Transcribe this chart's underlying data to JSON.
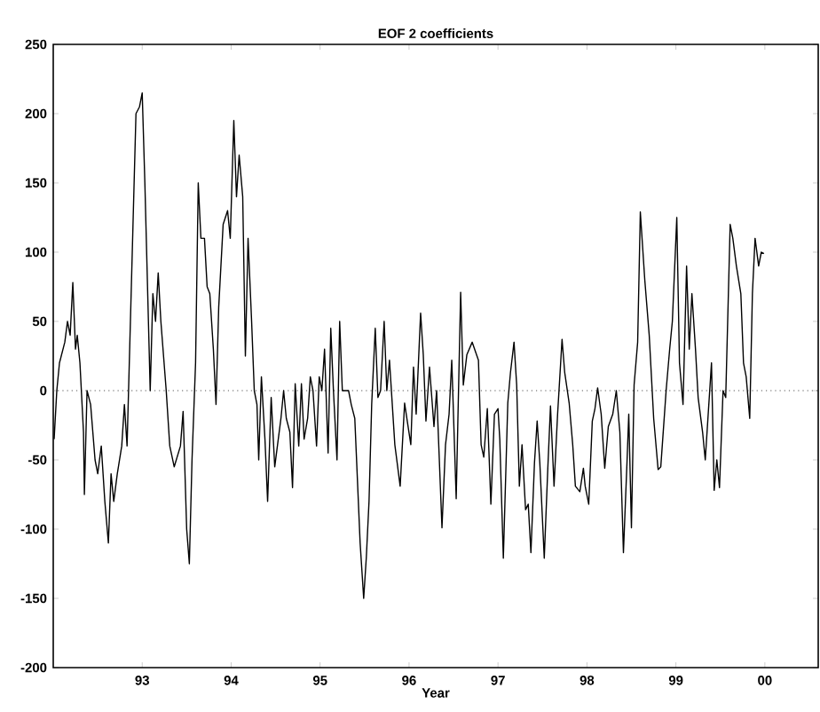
{
  "chart_data": {
    "type": "line",
    "title": "EOF 2 coefficients",
    "xlabel": "Year",
    "xlim": [
      1992,
      2000.6
    ],
    "ylim": [
      -200,
      250
    ],
    "xticks": [
      {
        "value": 1993,
        "label": "93"
      },
      {
        "value": 1994,
        "label": "94"
      },
      {
        "value": 1995,
        "label": "95"
      },
      {
        "value": 1996,
        "label": "96"
      },
      {
        "value": 1997,
        "label": "97"
      },
      {
        "value": 1998,
        "label": "98"
      },
      {
        "value": 1999,
        "label": "99"
      },
      {
        "value": 2000,
        "label": "00"
      }
    ],
    "yticks": [
      -200,
      -150,
      -100,
      -50,
      0,
      50,
      100,
      150,
      200,
      250
    ],
    "grid": false,
    "marker": "none",
    "line_style": "solid",
    "ref_lines": [
      {
        "axis": "y",
        "value": 0,
        "line_style": "dotted",
        "color": "#555555"
      }
    ],
    "series": [
      {
        "color": "#000000",
        "x": [
          1992.01,
          1992.04,
          1992.07,
          1992.13,
          1992.16,
          1992.19,
          1992.22,
          1992.25,
          1992.27,
          1992.3,
          1992.34,
          1992.35,
          1992.38,
          1992.42,
          1992.47,
          1992.5,
          1992.54,
          1992.58,
          1992.62,
          1992.65,
          1992.68,
          1992.72,
          1992.77,
          1992.8,
          1992.83,
          1992.88,
          1992.93,
          1992.97,
          1993.0,
          1993.03,
          1993.07,
          1993.09,
          1993.12,
          1993.15,
          1993.18,
          1993.21,
          1993.27,
          1993.31,
          1993.36,
          1993.43,
          1993.46,
          1993.5,
          1993.53,
          1993.56,
          1993.6,
          1993.63,
          1993.66,
          1993.7,
          1993.73,
          1993.76,
          1993.8,
          1993.83,
          1993.86,
          1993.91,
          1993.96,
          1993.99,
          1994.03,
          1994.06,
          1994.09,
          1994.13,
          1994.16,
          1994.19,
          1994.23,
          1994.26,
          1994.29,
          1994.31,
          1994.34,
          1994.38,
          1994.41,
          1994.45,
          1994.49,
          1994.52,
          1994.56,
          1994.59,
          1994.62,
          1994.66,
          1994.69,
          1994.72,
          1994.76,
          1994.79,
          1994.82,
          1994.86,
          1994.89,
          1994.92,
          1994.96,
          1994.99,
          1995.02,
          1995.05,
          1995.09,
          1995.12,
          1995.15,
          1995.19,
          1995.22,
          1995.25,
          1995.32,
          1995.35,
          1995.39,
          1995.45,
          1995.49,
          1995.52,
          1995.55,
          1995.58,
          1995.62,
          1995.65,
          1995.68,
          1995.72,
          1995.75,
          1995.78,
          1995.84,
          1995.9,
          1995.95,
          1995.98,
          1996.02,
          1996.05,
          1996.08,
          1996.13,
          1996.16,
          1996.19,
          1996.23,
          1996.28,
          1996.31,
          1996.37,
          1996.41,
          1996.45,
          1996.48,
          1996.53,
          1996.58,
          1996.61,
          1996.65,
          1996.71,
          1996.78,
          1996.81,
          1996.84,
          1996.88,
          1996.92,
          1996.96,
          1997.0,
          1997.02,
          1997.06,
          1997.11,
          1997.14,
          1997.18,
          1997.21,
          1997.24,
          1997.27,
          1997.31,
          1997.34,
          1997.37,
          1997.41,
          1997.44,
          1997.47,
          1997.52,
          1997.56,
          1997.59,
          1997.63,
          1997.67,
          1997.72,
          1997.75,
          1997.8,
          1997.84,
          1997.87,
          1997.92,
          1997.96,
          1997.98,
          1998.02,
          1998.06,
          1998.09,
          1998.12,
          1998.16,
          1998.2,
          1998.24,
          1998.29,
          1998.33,
          1998.37,
          1998.41,
          1998.45,
          1998.47,
          1998.5,
          1998.53,
          1998.57,
          1998.6,
          1998.65,
          1998.7,
          1998.75,
          1998.8,
          1998.83,
          1998.89,
          1998.93,
          1998.96,
          1999.01,
          1999.04,
          1999.08,
          1999.12,
          1999.15,
          1999.18,
          1999.22,
          1999.25,
          1999.3,
          1999.33,
          1999.36,
          1999.4,
          1999.43,
          1999.46,
          1999.49,
          1999.53,
          1999.56,
          1999.61,
          1999.64,
          1999.68,
          1999.73,
          1999.76,
          1999.79,
          1999.83,
          1999.86,
          1999.89,
          1999.93,
          1999.96,
          1999.99
        ],
        "values": [
          -35,
          0,
          20,
          35,
          50,
          40,
          78,
          30,
          40,
          20,
          -30,
          -75,
          0,
          -10,
          -50,
          -60,
          -40,
          -80,
          -110,
          -60,
          -80,
          -60,
          -40,
          -10,
          -40,
          80,
          200,
          205,
          215,
          150,
          50,
          0,
          70,
          50,
          85,
          50,
          0,
          -40,
          -55,
          -40,
          -15,
          -100,
          -125,
          -50,
          20,
          150,
          110,
          110,
          75,
          70,
          30,
          -10,
          60,
          120,
          130,
          110,
          195,
          140,
          170,
          140,
          25,
          110,
          50,
          0,
          -10,
          -50,
          10,
          -35,
          -80,
          -5,
          -55,
          -40,
          -20,
          0,
          -20,
          -30,
          -70,
          5,
          -40,
          5,
          -35,
          -20,
          10,
          0,
          -40,
          10,
          0,
          30,
          -45,
          45,
          0,
          -50,
          50,
          0,
          0,
          -10,
          -20,
          -110,
          -150,
          -120,
          -80,
          -10,
          45,
          -5,
          0,
          50,
          0,
          22,
          -39,
          -69,
          -9,
          -22,
          -39,
          17,
          -17,
          56,
          26,
          -22,
          17,
          -26,
          0,
          -99,
          -39,
          -17,
          22,
          -78,
          71,
          4,
          26,
          35,
          22,
          -39,
          -48,
          -13,
          -82,
          -17,
          -13,
          -35,
          -121,
          -9,
          13,
          35,
          4,
          -69,
          -39,
          -86,
          -82,
          -117,
          -52,
          -22,
          -52,
          -121,
          -56,
          -11,
          -69,
          -17,
          37,
          13,
          -9,
          -39,
          -69,
          -73,
          -56,
          -69,
          -82,
          -22,
          -13,
          2,
          -17,
          -56,
          -26,
          -17,
          0,
          -30,
          -117,
          -52,
          -17,
          -99,
          4,
          35,
          129,
          80,
          40,
          -20,
          -57,
          -55,
          0,
          30,
          50,
          125,
          20,
          -10,
          90,
          30,
          70,
          30,
          -5,
          -30,
          -50,
          -20,
          20,
          -72,
          -50,
          -70,
          0,
          -5,
          120,
          110,
          90,
          70,
          20,
          10,
          -20,
          70,
          110,
          90,
          100,
          99
        ]
      }
    ]
  }
}
